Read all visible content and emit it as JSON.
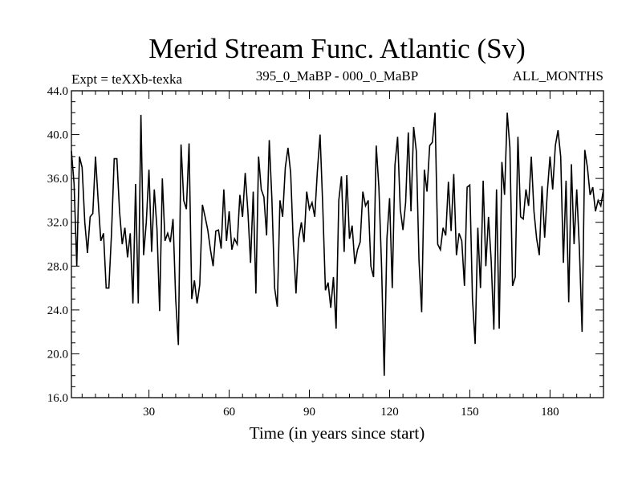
{
  "chart_data": {
    "type": "line",
    "title": "Merid Stream Func. Atlantic (Sv)",
    "subtitle_left": "Expt = teXXb-texka",
    "subtitle_center": "395_0_MaBP - 000_0_MaBP",
    "subtitle_right": "ALL_MONTHS",
    "xlabel": "Time (in years since start)",
    "ylabel": "",
    "xlim": [
      1,
      200
    ],
    "ylim": [
      16,
      44
    ],
    "xticks": [
      30,
      60,
      90,
      120,
      150,
      180
    ],
    "xtick_labels": [
      "30",
      "60",
      "90",
      "120",
      "150",
      "180"
    ],
    "yticks": [
      16,
      20,
      24,
      28,
      32,
      36,
      40,
      44
    ],
    "ytick_labels": [
      "16.0",
      "20.0",
      "24.0",
      "28.0",
      "32.0",
      "36.0",
      "40.0",
      "44.0"
    ],
    "grid": false,
    "legend": "none",
    "line_color": "#000000",
    "series": [
      {
        "values": [
          38.5,
          35.5,
          28.0,
          38.0,
          37.0,
          32.0,
          29.2,
          32.5,
          32.8,
          38.0,
          34.0,
          30.3,
          31.0,
          26.0,
          26.0,
          31.0,
          37.8,
          37.8,
          33.0,
          30.0,
          31.5,
          28.8,
          31.0,
          24.6,
          35.5,
          24.6,
          41.8,
          29.0,
          32.0,
          36.8,
          29.3,
          35.0,
          31.4,
          23.9,
          36.0,
          30.3,
          31.0,
          30.2,
          32.3,
          25.0,
          20.8,
          39.1,
          34.0,
          33.2,
          39.2,
          25.0,
          26.7,
          24.6,
          26.3,
          33.6,
          32.5,
          31.3,
          29.5,
          28.0,
          31.2,
          31.3,
          29.6,
          35.0,
          30.3,
          33.0,
          29.5,
          30.5,
          30.0,
          34.5,
          32.5,
          36.5,
          33.0,
          28.3,
          34.8,
          25.5,
          38.0,
          35.0,
          34.3,
          30.8,
          39.5,
          34.0,
          26.0,
          24.3,
          34.0,
          32.5,
          37.0,
          38.8,
          36.5,
          30.0,
          25.5,
          30.5,
          32.0,
          30.2,
          34.8,
          33.2,
          33.8,
          32.5,
          36.7,
          40.0,
          33.5,
          25.8,
          26.5,
          24.2,
          27.0,
          22.3,
          34.0,
          36.2,
          29.3,
          36.3,
          30.5,
          31.7,
          28.2,
          29.5,
          30.2,
          34.8,
          33.5,
          34.0,
          28.0,
          27.0,
          39.0,
          35.2,
          28.0,
          18.0,
          30.5,
          34.2,
          26.0,
          37.2,
          39.8,
          33.2,
          31.3,
          33.8,
          40.2,
          33.0,
          40.7,
          38.5,
          28.5,
          23.8,
          36.8,
          34.8,
          39.0,
          39.3,
          42.0,
          30.0,
          29.5,
          31.5,
          30.8,
          35.7,
          31.2,
          36.4,
          29.0,
          31.0,
          30.3,
          26.2,
          35.2,
          35.4,
          25.0,
          20.9,
          31.5,
          26.0,
          35.8,
          28.0,
          32.5,
          28.5,
          22.2,
          35.0,
          22.3,
          37.5,
          34.5,
          42.0,
          38.8,
          26.2,
          27.0,
          39.8,
          32.5,
          32.3,
          35.0,
          33.5,
          38.0,
          33.0,
          30.5,
          29.0,
          35.3,
          30.6,
          34.8,
          38.0,
          35.0,
          39.0,
          40.4,
          38.0,
          28.3,
          35.8,
          24.7,
          37.3,
          30.0,
          35.0,
          29.5,
          22.0,
          38.6,
          37.0,
          34.5,
          35.2,
          33.0,
          34.0,
          33.5,
          35.0
        ]
      }
    ]
  }
}
